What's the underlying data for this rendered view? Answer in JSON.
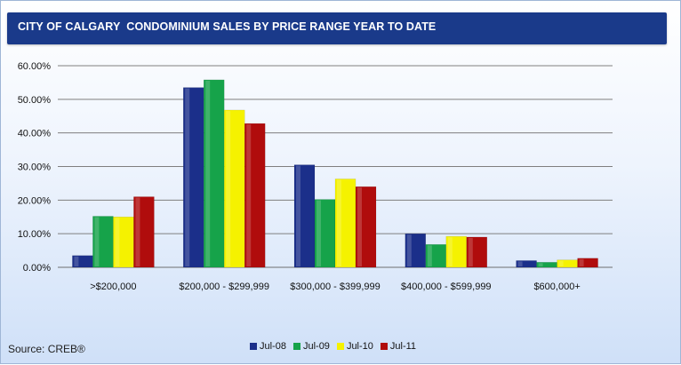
{
  "chart_data": {
    "type": "bar",
    "title": "CITY OF CALGARY  CONDOMINIUM SALES BY PRICE RANGE YEAR TO DATE",
    "categories": [
      ">$200,000",
      "$200,000 - $299,999",
      "$300,000 - $399,999",
      "$400,000 - $599,999",
      "$600,000+"
    ],
    "series": [
      {
        "name": "Jul-08",
        "color": "#1b2f8a",
        "values": [
          3.5,
          53.5,
          30.5,
          10.0,
          2.0
        ]
      },
      {
        "name": "Jul-09",
        "color": "#16a34a",
        "values": [
          15.2,
          55.8,
          20.2,
          6.8,
          1.5
        ]
      },
      {
        "name": "Jul-10",
        "color": "#f5f200",
        "values": [
          15.0,
          46.8,
          26.3,
          9.2,
          2.2
        ]
      },
      {
        "name": "Jul-11",
        "color": "#b00c0c",
        "values": [
          21.0,
          42.8,
          24.0,
          9.0,
          2.7
        ]
      }
    ],
    "yticks": [
      "0.00%",
      "10.00%",
      "20.00%",
      "30.00%",
      "40.00%",
      "50.00%",
      "60.00%"
    ],
    "ylim": [
      0,
      60
    ],
    "grid": true,
    "legend_position": "bottom",
    "source": "Source: CREB®"
  }
}
